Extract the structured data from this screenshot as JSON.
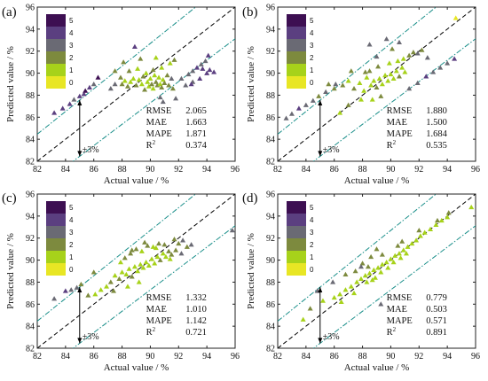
{
  "colorbar": {
    "labels": [
      "5",
      "4",
      "3",
      "2",
      "1",
      "0"
    ],
    "colors": [
      "#3d0f52",
      "#5b3f80",
      "#6a6a74",
      "#7d8a3e",
      "#a7d21a",
      "#e8e624"
    ]
  },
  "chart_data": [
    {
      "type": "scatter",
      "panel_label": "(a)",
      "xlabel": "Actual value / %",
      "ylabel": "Predicted value / %",
      "xlim": [
        82,
        96
      ],
      "ylim": [
        82,
        96
      ],
      "xticks": [
        "82",
        "84",
        "86",
        "88",
        "90",
        "92",
        "94",
        "96"
      ],
      "yticks": [
        "82",
        "84",
        "86",
        "88",
        "90",
        "92",
        "94",
        "96"
      ],
      "reference_lines": [
        "y = x",
        "y = 1.03x",
        "y = 0.97x"
      ],
      "band_label": "±3%",
      "stats": [
        [
          "RMSE",
          "2.065"
        ],
        [
          "MAE",
          "1.663"
        ],
        [
          "MAPE",
          "1.871"
        ],
        [
          "R2",
          "0.374"
        ]
      ],
      "points": [
        [
          83.2,
          86.4,
          4
        ],
        [
          83.8,
          86.8,
          4
        ],
        [
          84.3,
          87.2,
          4
        ],
        [
          84.6,
          87.6,
          3
        ],
        [
          85.0,
          87.9,
          4
        ],
        [
          85.3,
          88.1,
          4
        ],
        [
          85.4,
          88.4,
          5
        ],
        [
          85.7,
          88.7,
          4
        ],
        [
          86.0,
          89.0,
          3
        ],
        [
          86.3,
          89.6,
          5
        ],
        [
          87.2,
          88.6,
          3
        ],
        [
          87.5,
          89.0,
          3
        ],
        [
          87.9,
          89.6,
          2
        ],
        [
          88.0,
          89.0,
          2
        ],
        [
          88.2,
          89.3,
          1
        ],
        [
          88.4,
          88.8,
          2
        ],
        [
          88.6,
          89.2,
          1
        ],
        [
          88.8,
          89.5,
          1
        ],
        [
          89.0,
          88.9,
          2
        ],
        [
          89.2,
          89.4,
          1
        ],
        [
          89.4,
          89.0,
          1
        ],
        [
          89.5,
          89.7,
          2
        ],
        [
          89.6,
          88.5,
          2
        ],
        [
          89.8,
          89.2,
          1
        ],
        [
          89.9,
          88.8,
          1
        ],
        [
          90.0,
          89.5,
          1
        ],
        [
          90.1,
          89.0,
          2
        ],
        [
          90.2,
          88.6,
          1
        ],
        [
          90.3,
          89.8,
          1
        ],
        [
          90.4,
          89.2,
          2
        ],
        [
          90.5,
          88.9,
          2
        ],
        [
          90.6,
          89.6,
          1
        ],
        [
          90.7,
          89.0,
          1
        ],
        [
          90.8,
          88.7,
          2
        ],
        [
          90.9,
          89.4,
          1
        ],
        [
          91.0,
          89.1,
          2
        ],
        [
          91.2,
          89.8,
          2
        ],
        [
          91.3,
          88.9,
          2
        ],
        [
          91.5,
          89.5,
          3
        ],
        [
          88.5,
          90.2,
          2
        ],
        [
          89.1,
          90.4,
          1
        ],
        [
          89.7,
          90.0,
          1
        ],
        [
          90.2,
          90.3,
          2
        ],
        [
          90.8,
          90.5,
          1
        ],
        [
          91.4,
          90.9,
          1
        ],
        [
          91.7,
          91.2,
          2
        ],
        [
          90.4,
          91.4,
          1
        ],
        [
          89.3,
          91.3,
          2
        ],
        [
          88.9,
          92.4,
          4
        ],
        [
          88.1,
          91.0,
          2
        ],
        [
          87.5,
          90.2,
          2
        ],
        [
          90.7,
          87.8,
          3
        ],
        [
          91.8,
          87.7,
          3
        ],
        [
          92.2,
          89.5,
          3
        ],
        [
          92.7,
          89.9,
          3
        ],
        [
          93.0,
          90.2,
          3
        ],
        [
          93.3,
          90.5,
          4
        ],
        [
          93.6,
          90.8,
          3
        ],
        [
          93.9,
          91.1,
          3
        ],
        [
          94.1,
          91.6,
          4
        ],
        [
          92.5,
          88.9,
          3
        ],
        [
          93.0,
          89.2,
          3
        ],
        [
          93.5,
          89.5,
          4
        ],
        [
          94.0,
          90.0,
          4
        ],
        [
          94.2,
          90.3,
          4
        ],
        [
          94.5,
          90.1,
          4
        ],
        [
          92.9,
          89.0,
          4
        ],
        [
          93.7,
          90.4,
          4
        ],
        [
          90.9,
          87.4,
          3
        ],
        [
          91.6,
          88.6,
          2
        ]
      ]
    },
    {
      "type": "scatter",
      "panel_label": "(b)",
      "xlabel": "Actual value / %",
      "ylabel": "Predicted value / %",
      "xlim": [
        82,
        96
      ],
      "ylim": [
        82,
        96
      ],
      "xticks": [
        "82",
        "84",
        "86",
        "88",
        "90",
        "92",
        "94",
        "96"
      ],
      "yticks": [
        "82",
        "84",
        "86",
        "88",
        "90",
        "92",
        "94",
        "96"
      ],
      "reference_lines": [
        "y = x",
        "y = 1.03x",
        "y = 0.97x"
      ],
      "band_label": "±3%",
      "stats": [
        [
          "RMSE",
          "1.880"
        ],
        [
          "MAE",
          "1.500"
        ],
        [
          "MAPE",
          "1.684"
        ],
        [
          "R2",
          "0.535"
        ]
      ],
      "points": [
        [
          82.6,
          85.9,
          3
        ],
        [
          83.0,
          86.3,
          3
        ],
        [
          83.5,
          86.8,
          4
        ],
        [
          84.0,
          87.1,
          3
        ],
        [
          84.5,
          87.5,
          3
        ],
        [
          84.9,
          87.9,
          2
        ],
        [
          85.4,
          88.3,
          3
        ],
        [
          86.0,
          88.6,
          2
        ],
        [
          86.6,
          88.9,
          2
        ],
        [
          87.0,
          89.3,
          1
        ],
        [
          87.4,
          88.6,
          2
        ],
        [
          87.8,
          89.1,
          1
        ],
        [
          88.1,
          88.4,
          1
        ],
        [
          88.3,
          89.6,
          1
        ],
        [
          88.6,
          88.9,
          1
        ],
        [
          88.8,
          89.3,
          1
        ],
        [
          89.0,
          88.7,
          2
        ],
        [
          89.2,
          89.5,
          1
        ],
        [
          89.4,
          89.0,
          1
        ],
        [
          89.6,
          89.8,
          1
        ],
        [
          89.8,
          89.3,
          1
        ],
        [
          90.0,
          89.9,
          1
        ],
        [
          90.2,
          89.5,
          1
        ],
        [
          90.4,
          90.2,
          1
        ],
        [
          90.6,
          89.7,
          2
        ],
        [
          90.8,
          90.5,
          1
        ],
        [
          91.0,
          90.1,
          1
        ],
        [
          88.7,
          87.6,
          1
        ],
        [
          89.3,
          87.9,
          2
        ],
        [
          87.9,
          87.6,
          1
        ],
        [
          88.5,
          90.2,
          2
        ],
        [
          89.1,
          90.6,
          2
        ],
        [
          89.9,
          90.9,
          1
        ],
        [
          90.5,
          91.1,
          1
        ],
        [
          90.9,
          91.3,
          1
        ],
        [
          91.3,
          91.6,
          2
        ],
        [
          91.6,
          91.9,
          2
        ],
        [
          90.1,
          92.2,
          2
        ],
        [
          89.0,
          91.5,
          3
        ],
        [
          88.2,
          90.1,
          2
        ],
        [
          89.7,
          93.1,
          3
        ],
        [
          88.5,
          92.6,
          3
        ],
        [
          90.6,
          92.8,
          3
        ],
        [
          91.3,
          88.6,
          3
        ],
        [
          91.9,
          89.1,
          3
        ],
        [
          92.5,
          89.7,
          4
        ],
        [
          93.0,
          90.1,
          3
        ],
        [
          93.5,
          90.5,
          3
        ],
        [
          94.0,
          90.9,
          3
        ],
        [
          94.5,
          91.3,
          4
        ],
        [
          92.6,
          91.4,
          3
        ],
        [
          92.2,
          92.1,
          2
        ],
        [
          91.9,
          91.8,
          3
        ],
        [
          94.6,
          95.0,
          0
        ],
        [
          86.4,
          86.4,
          1
        ],
        [
          87.0,
          87.1,
          2
        ],
        [
          86.1,
          89.0,
          3
        ],
        [
          85.6,
          89.0,
          2
        ],
        [
          87.2,
          90.2,
          2
        ]
      ]
    },
    {
      "type": "scatter",
      "panel_label": "(c)",
      "xlabel": "Actual value / %",
      "ylabel": "Predicted value / %",
      "xlim": [
        82,
        96
      ],
      "ylim": [
        82,
        96
      ],
      "xticks": [
        "82",
        "84",
        "86",
        "88",
        "90",
        "92",
        "94",
        "96"
      ],
      "yticks": [
        "82",
        "84",
        "86",
        "88",
        "90",
        "92",
        "94",
        "96"
      ],
      "reference_lines": [
        "y = x",
        "y = 1.03x",
        "y = 0.97x"
      ],
      "band_label": "±3%",
      "stats": [
        [
          "RMSE",
          "1.332"
        ],
        [
          "MAE",
          "1.010"
        ],
        [
          "MAPE",
          "1.142"
        ],
        [
          "R2",
          "0.721"
        ]
      ],
      "points": [
        [
          83.2,
          86.5,
          3
        ],
        [
          84.0,
          87.2,
          4
        ],
        [
          84.4,
          87.3,
          3
        ],
        [
          84.8,
          87.5,
          3
        ],
        [
          85.1,
          87.8,
          2
        ],
        [
          85.6,
          86.8,
          2
        ],
        [
          86.1,
          86.9,
          1
        ],
        [
          86.5,
          87.3,
          1
        ],
        [
          86.9,
          87.6,
          1
        ],
        [
          87.2,
          88.0,
          2
        ],
        [
          87.5,
          88.6,
          1
        ],
        [
          87.8,
          88.3,
          2
        ],
        [
          88.0,
          88.9,
          1
        ],
        [
          88.3,
          88.7,
          1
        ],
        [
          88.5,
          89.2,
          1
        ],
        [
          88.7,
          88.5,
          2
        ],
        [
          88.9,
          89.4,
          1
        ],
        [
          89.1,
          89.0,
          1
        ],
        [
          89.3,
          89.6,
          1
        ],
        [
          89.5,
          89.3,
          1
        ],
        [
          89.7,
          89.8,
          1
        ],
        [
          89.9,
          89.5,
          1
        ],
        [
          90.1,
          90.1,
          1
        ],
        [
          90.3,
          89.7,
          1
        ],
        [
          90.5,
          90.3,
          1
        ],
        [
          90.7,
          90.0,
          2
        ],
        [
          90.9,
          90.6,
          1
        ],
        [
          91.1,
          90.3,
          1
        ],
        [
          91.3,
          90.8,
          2
        ],
        [
          91.5,
          90.5,
          2
        ],
        [
          88.2,
          90.2,
          2
        ],
        [
          88.6,
          90.6,
          2
        ],
        [
          89.0,
          91.0,
          2
        ],
        [
          89.4,
          90.8,
          1
        ],
        [
          89.8,
          91.3,
          2
        ],
        [
          90.2,
          91.2,
          1
        ],
        [
          90.6,
          91.5,
          2
        ],
        [
          91.0,
          91.4,
          2
        ],
        [
          91.7,
          91.9,
          2
        ],
        [
          92.0,
          91.5,
          2
        ],
        [
          92.3,
          91.8,
          3
        ],
        [
          92.6,
          91.2,
          2
        ],
        [
          92.9,
          91.4,
          3
        ],
        [
          91.8,
          90.9,
          2
        ],
        [
          92.2,
          90.6,
          3
        ],
        [
          88.7,
          90.9,
          2
        ],
        [
          87.9,
          89.8,
          1
        ],
        [
          86.0,
          88.9,
          2
        ],
        [
          90.4,
          91.1,
          1
        ],
        [
          89.6,
          91.6,
          2
        ],
        [
          95.8,
          92.7,
          3
        ],
        [
          89.2,
          88.0,
          1
        ],
        [
          88.4,
          87.6,
          1
        ],
        [
          87.4,
          87.2,
          2
        ],
        [
          91.4,
          90.1,
          1
        ]
      ]
    },
    {
      "type": "scatter",
      "panel_label": "(d)",
      "xlabel": "Actual value / %",
      "ylabel": "Predicted value / %",
      "xlim": [
        82,
        96
      ],
      "ylim": [
        82,
        96
      ],
      "xticks": [
        "82",
        "84",
        "86",
        "88",
        "90",
        "92",
        "94",
        "96"
      ],
      "yticks": [
        "82",
        "84",
        "86",
        "88",
        "90",
        "92",
        "94",
        "96"
      ],
      "reference_lines": [
        "y = x",
        "y = 1.03x",
        "y = 0.97x"
      ],
      "band_label": "±3%",
      "stats": [
        [
          "RMSE",
          "0.779"
        ],
        [
          "MAE",
          "0.503"
        ],
        [
          "MAPE",
          "0.571"
        ],
        [
          "R2",
          "0.891"
        ]
      ],
      "points": [
        [
          83.8,
          84.6,
          1
        ],
        [
          84.3,
          85.6,
          2
        ],
        [
          85.2,
          86.3,
          1
        ],
        [
          86.0,
          86.6,
          1
        ],
        [
          86.4,
          86.9,
          1
        ],
        [
          86.8,
          87.3,
          1
        ],
        [
          87.2,
          87.6,
          1
        ],
        [
          87.6,
          88.0,
          1
        ],
        [
          87.9,
          88.3,
          1
        ],
        [
          88.2,
          88.6,
          1
        ],
        [
          88.5,
          88.8,
          1
        ],
        [
          88.8,
          89.1,
          1
        ],
        [
          89.1,
          89.3,
          1
        ],
        [
          89.4,
          89.6,
          1
        ],
        [
          89.7,
          89.8,
          1
        ],
        [
          90.0,
          90.1,
          1
        ],
        [
          90.3,
          90.4,
          1
        ],
        [
          90.6,
          90.6,
          1
        ],
        [
          90.9,
          90.9,
          1
        ],
        [
          91.2,
          91.2,
          1
        ],
        [
          91.5,
          91.5,
          1
        ],
        [
          91.8,
          91.8,
          1
        ],
        [
          92.1,
          92.2,
          1
        ],
        [
          92.4,
          92.5,
          1
        ],
        [
          92.8,
          92.8,
          1
        ],
        [
          93.2,
          93.2,
          1
        ],
        [
          93.6,
          93.6,
          1
        ],
        [
          94.0,
          93.9,
          1
        ],
        [
          95.7,
          94.8,
          1
        ],
        [
          87.5,
          89.0,
          2
        ],
        [
          88.0,
          89.7,
          2
        ],
        [
          88.4,
          89.4,
          2
        ],
        [
          88.9,
          88.4,
          1
        ],
        [
          89.3,
          88.9,
          1
        ],
        [
          89.8,
          89.3,
          1
        ],
        [
          90.2,
          89.8,
          1
        ],
        [
          90.7,
          90.2,
          1
        ],
        [
          91.1,
          90.6,
          1
        ],
        [
          88.3,
          88.0,
          1
        ],
        [
          87.4,
          87.0,
          1
        ],
        [
          86.5,
          86.2,
          1
        ],
        [
          85.9,
          88.0,
          3
        ],
        [
          84.8,
          87.2,
          3
        ],
        [
          86.8,
          88.7,
          2
        ],
        [
          87.9,
          89.4,
          3
        ],
        [
          88.6,
          90.3,
          2
        ],
        [
          89.4,
          90.5,
          2
        ],
        [
          90.5,
          91.3,
          2
        ],
        [
          89.0,
          91.0,
          2
        ],
        [
          92.0,
          92.7,
          2
        ],
        [
          93.3,
          93.6,
          2
        ],
        [
          94.1,
          94.3,
          2
        ],
        [
          89.3,
          86.0,
          3
        ],
        [
          88.7,
          88.2,
          1
        ],
        [
          90.8,
          91.7,
          2
        ]
      ]
    }
  ]
}
